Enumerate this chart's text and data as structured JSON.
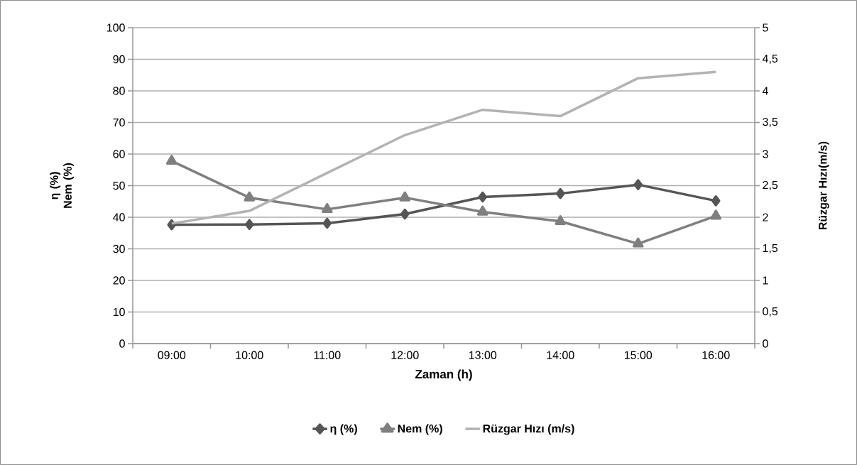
{
  "chart_data": {
    "type": "line",
    "xlabel": "Zaman (h)",
    "ylabel": "η (%) Nem (%)",
    "y2label": "Rüzgar Hızı(m/s)",
    "categories": [
      "09:00",
      "10:00",
      "11:00",
      "12:00",
      "13:00",
      "14:00",
      "15:00",
      "16:00"
    ],
    "series": [
      {
        "name": "η (%)",
        "color": "#555555",
        "marker": "diamond",
        "values": [
          37.6,
          37.7,
          38.1,
          41.0,
          46.4,
          47.5,
          50.3,
          45.2
        ]
      },
      {
        "name": "Nem (%)",
        "color": "#7f7f7f",
        "marker": "triangle",
        "values": [
          57.8,
          46.2,
          42.5,
          46.2,
          41.7,
          38.7,
          31.6,
          40.4
        ]
      },
      {
        "name": "Rüzgar Hızı (m/s)",
        "color": "#b3b3b3",
        "marker": "none",
        "axis": "y2",
        "values": [
          1.9,
          2.1,
          2.7,
          3.3,
          3.7,
          3.6,
          4.2,
          4.3
        ]
      }
    ],
    "ylim": [
      0,
      100
    ],
    "yticks": [
      0,
      10,
      20,
      30,
      40,
      50,
      60,
      70,
      80,
      90,
      100
    ],
    "y2lim": [
      0,
      5
    ],
    "y2ticks": [
      0,
      {
        "value": 0.5,
        "label": "0,5"
      },
      1,
      {
        "value": 1.5,
        "label": "1,5"
      },
      2,
      {
        "value": 2.5,
        "label": "2,5"
      },
      3,
      {
        "value": 3.5,
        "label": "3,5"
      },
      4,
      {
        "value": 4.5,
        "label": "4,5"
      },
      5
    ],
    "grid": "y",
    "legend": "bottom",
    "line_style": "solid"
  }
}
